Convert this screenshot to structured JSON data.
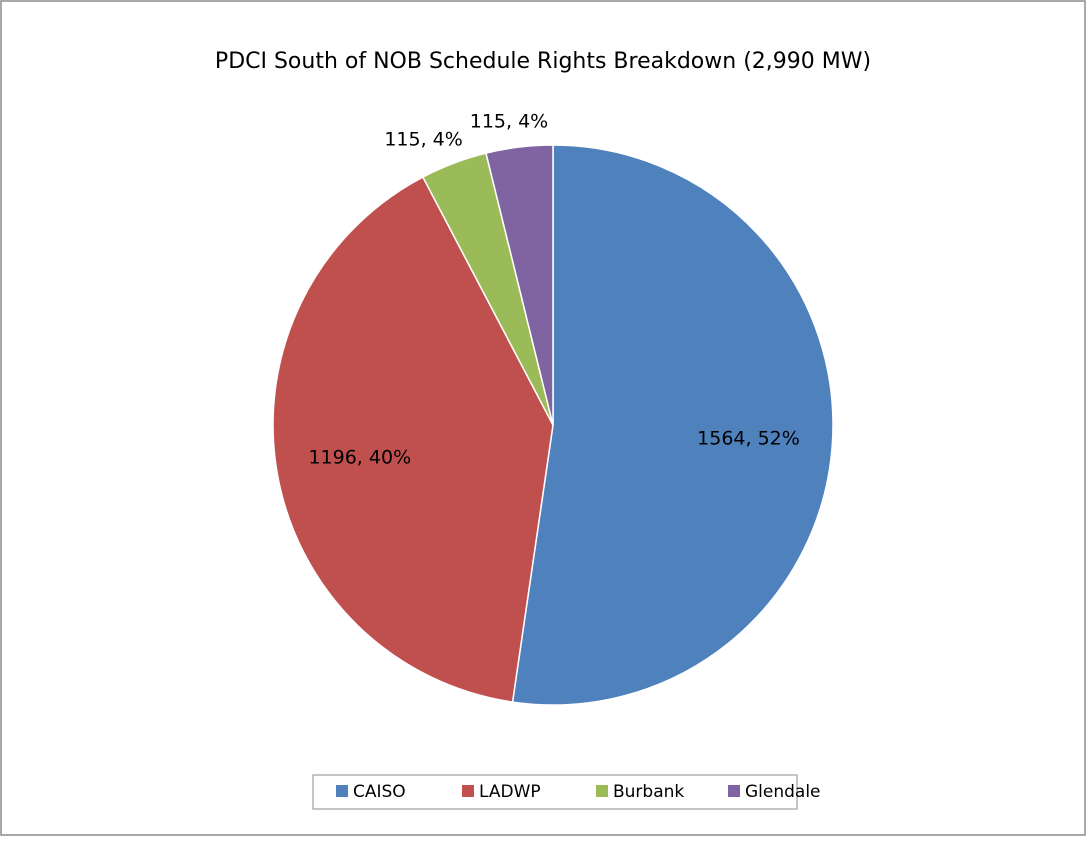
{
  "chart_data": {
    "type": "pie",
    "title": "PDCI South of NOB Schedule Rights Breakdown (2,990 MW)",
    "categories": [
      "CAISO",
      "LADWP",
      "Burbank",
      "Glendale"
    ],
    "values": [
      1564,
      1196,
      115,
      115
    ],
    "value_labels": [
      "1564, 52%",
      "1196, 40%",
      "115, 4%",
      "115, 4%"
    ],
    "colors": [
      "#4f81bd",
      "#c0504d",
      "#9bbb59",
      "#8064a2"
    ],
    "legend": "bottom"
  }
}
